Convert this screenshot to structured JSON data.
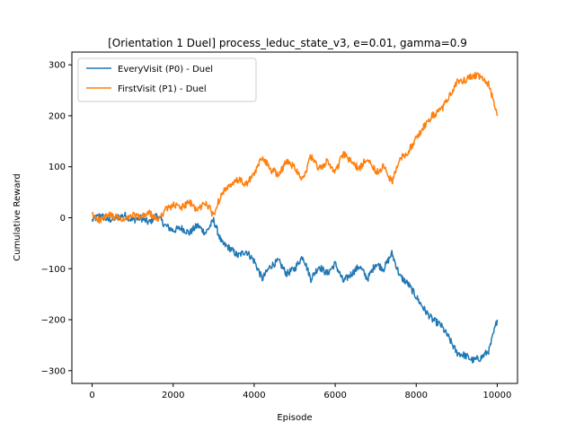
{
  "chart_data": {
    "type": "line",
    "title": "[Orientation 1 Duel] process_leduc_state_v3, e=0.01, gamma=0.9",
    "xlabel": "Episode",
    "ylabel": "Cumulative Reward",
    "xlim": [
      -500,
      10500
    ],
    "ylim": [
      -325,
      325
    ],
    "xticks": [
      0,
      2000,
      4000,
      6000,
      8000,
      10000
    ],
    "yticks": [
      -300,
      -200,
      -100,
      0,
      100,
      200,
      300
    ],
    "xtick_labels": [
      "0",
      "2000",
      "4000",
      "6000",
      "8000",
      "10000"
    ],
    "ytick_labels": [
      "−300",
      "−200",
      "−100",
      "0",
      "100",
      "200",
      "300"
    ],
    "grid": false,
    "legend_position": "upper-left",
    "series": [
      {
        "name": "EveryVisit (P0) - Duel",
        "color": "#1f77b4",
        "x": [
          0,
          200,
          400,
          600,
          800,
          1000,
          1200,
          1400,
          1600,
          1800,
          2000,
          2200,
          2400,
          2600,
          2800,
          3000,
          3200,
          3400,
          3600,
          3800,
          4000,
          4200,
          4400,
          4600,
          4800,
          5000,
          5200,
          5400,
          5600,
          5800,
          6000,
          6200,
          6400,
          6600,
          6800,
          7000,
          7200,
          7400,
          7600,
          7800,
          8000,
          8200,
          8400,
          8600,
          8800,
          9000,
          9200,
          9400,
          9600,
          9800,
          10000
        ],
        "y": [
          -5,
          5,
          -5,
          0,
          5,
          -5,
          0,
          -10,
          5,
          -15,
          -25,
          -20,
          -30,
          -15,
          -30,
          -5,
          -50,
          -60,
          -75,
          -65,
          -85,
          -120,
          -95,
          -85,
          -110,
          -100,
          -75,
          -120,
          -95,
          -110,
          -90,
          -125,
          -110,
          -95,
          -120,
          -90,
          -100,
          -70,
          -115,
          -130,
          -155,
          -180,
          -200,
          -210,
          -235,
          -265,
          -270,
          -280,
          -275,
          -260,
          -200
        ]
      },
      {
        "name": "FirstVisit (P1) - Duel",
        "color": "#ff7f0e",
        "x": [
          0,
          200,
          400,
          600,
          800,
          1000,
          1200,
          1400,
          1600,
          1800,
          2000,
          2200,
          2400,
          2600,
          2800,
          3000,
          3200,
          3400,
          3600,
          3800,
          4000,
          4200,
          4400,
          4600,
          4800,
          5000,
          5200,
          5400,
          5600,
          5800,
          6000,
          6200,
          6400,
          6600,
          6800,
          7000,
          7200,
          7400,
          7600,
          7800,
          8000,
          8200,
          8400,
          8600,
          8800,
          9000,
          9200,
          9400,
          9600,
          9800,
          10000
        ],
        "y": [
          5,
          -5,
          5,
          0,
          -5,
          5,
          0,
          10,
          -5,
          15,
          25,
          20,
          30,
          15,
          30,
          5,
          50,
          60,
          75,
          65,
          85,
          120,
          95,
          85,
          110,
          100,
          75,
          120,
          95,
          110,
          90,
          125,
          110,
          95,
          120,
          90,
          100,
          70,
          115,
          130,
          155,
          180,
          200,
          210,
          235,
          265,
          270,
          280,
          275,
          260,
          200
        ]
      }
    ]
  }
}
